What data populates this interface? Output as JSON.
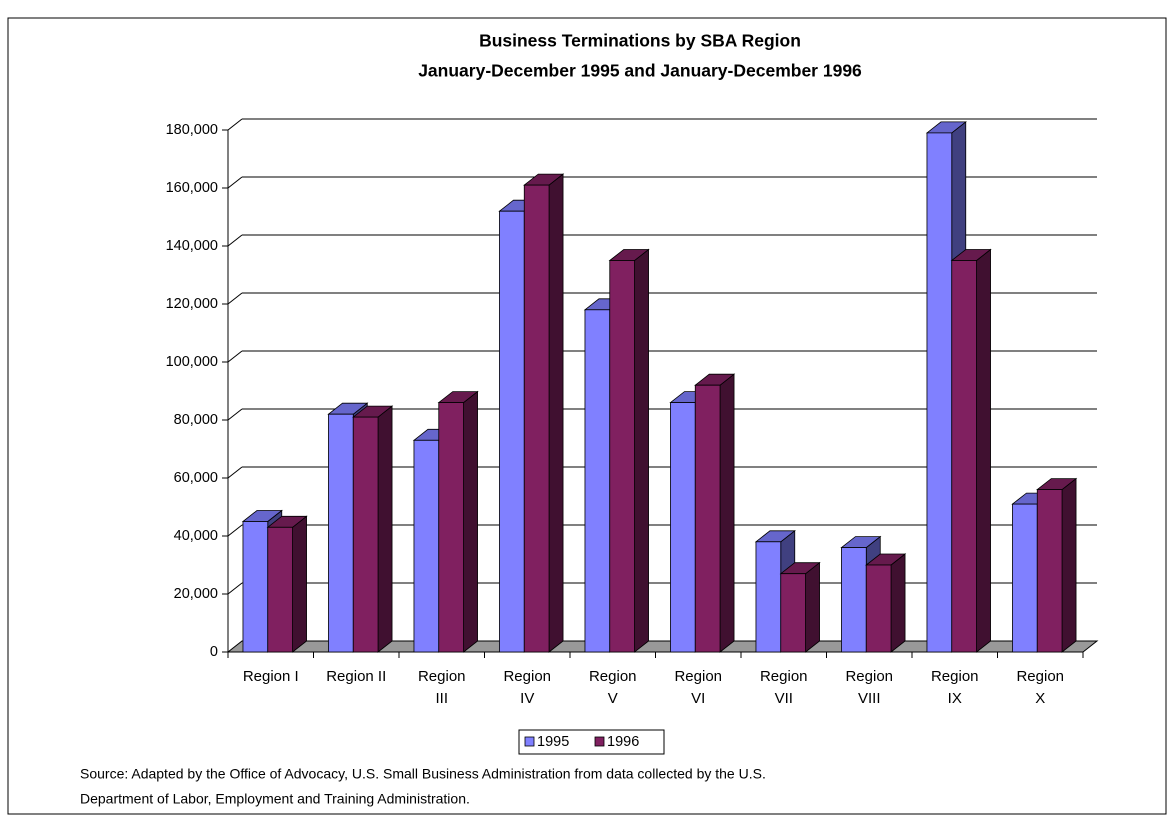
{
  "chart_data": {
    "type": "bar3d",
    "title": "Business Terminations by SBA Region",
    "subtitle": "January-December 1995 and January-December 1996",
    "categories": [
      "Region I",
      "Region II",
      "Region\nIII",
      "Region\nIV",
      "Region\nV",
      "Region\nVI",
      "Region\nVII",
      "Region\nVIII",
      "Region\nIX",
      "Region\nX"
    ],
    "series": [
      {
        "name": "1995",
        "color": "#8080ff",
        "values": [
          45000,
          82000,
          73000,
          152000,
          118000,
          86000,
          38000,
          36000,
          179000,
          51000
        ]
      },
      {
        "name": "1996",
        "color": "#802060",
        "values": [
          43000,
          81000,
          86000,
          161000,
          135000,
          92000,
          27000,
          30000,
          135000,
          56000
        ]
      }
    ],
    "ylim": [
      0,
      180000
    ],
    "yticks": [
      {
        "value": 0,
        "label": "0"
      },
      {
        "value": 20000,
        "label": "20,000"
      },
      {
        "value": 40000,
        "label": "40,000"
      },
      {
        "value": 60000,
        "label": "60,000"
      },
      {
        "value": 80000,
        "label": "80,000"
      },
      {
        "value": 100000,
        "label": "100,000"
      },
      {
        "value": 120000,
        "label": "120,000"
      },
      {
        "value": 140000,
        "label": "140,000"
      },
      {
        "value": 160000,
        "label": "160,000"
      },
      {
        "value": 180000,
        "label": "180,000"
      }
    ],
    "grid": true,
    "legend": "bottom",
    "source": [
      "Source:  Adapted by the Office of Advocacy, U.S. Small Business Administration from data collected by the U.S.",
      "Department of Labor, Employment and Training Administration."
    ]
  }
}
